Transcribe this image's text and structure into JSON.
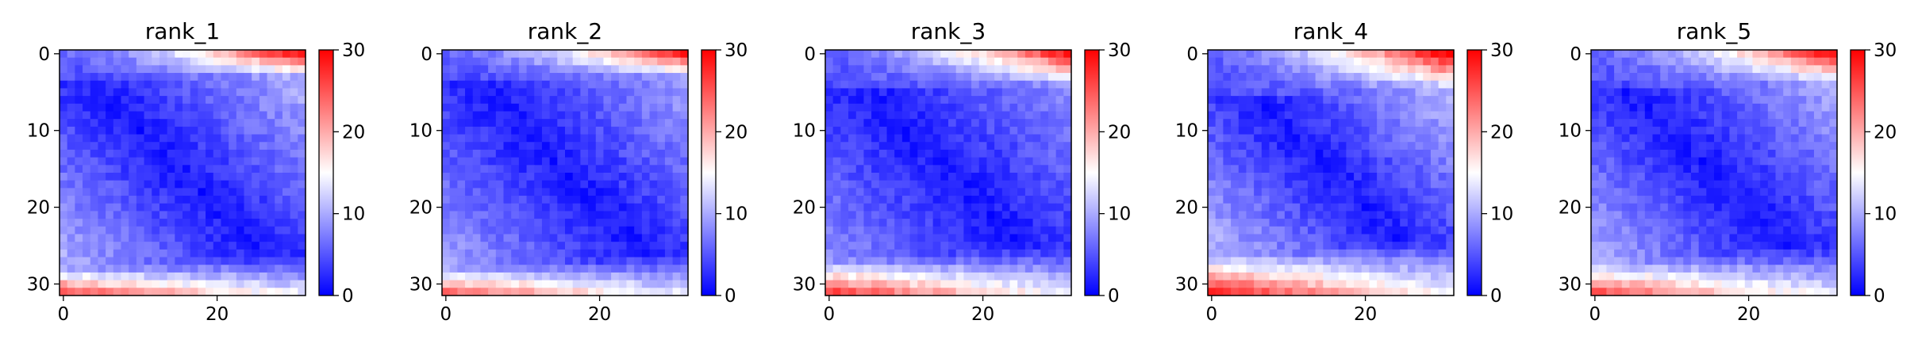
{
  "chart_data": [
    {
      "type": "heatmap",
      "title": "rank_1",
      "size": 32,
      "xticks": [
        0,
        20
      ],
      "yticks": [
        0,
        10,
        20,
        30
      ],
      "colorbar": {
        "min": 0,
        "max": 30,
        "ticks": [
          0,
          10,
          20,
          30
        ],
        "colormap": "bwr"
      },
      "profile": {
        "diag": 1.5,
        "ramp": 10,
        "top": 28,
        "bottom": 25,
        "flare_rows": 4
      }
    },
    {
      "type": "heatmap",
      "title": "rank_2",
      "size": 32,
      "xticks": [
        0,
        20
      ],
      "yticks": [
        0,
        10,
        20,
        30
      ],
      "colorbar": {
        "min": 0,
        "max": 30,
        "ticks": [
          0,
          10,
          20,
          30
        ],
        "colormap": "bwr"
      },
      "profile": {
        "diag": 1.5,
        "ramp": 9,
        "top": 26,
        "bottom": 24,
        "flare_rows": 4
      }
    },
    {
      "type": "heatmap",
      "title": "rank_3",
      "size": 32,
      "xticks": [
        0,
        20
      ],
      "yticks": [
        0,
        10,
        20,
        30
      ],
      "colorbar": {
        "min": 0,
        "max": 30,
        "ticks": [
          0,
          10,
          20,
          30
        ],
        "colormap": "bwr"
      },
      "profile": {
        "diag": 1.5,
        "ramp": 8,
        "top": 27,
        "bottom": 26,
        "flare_rows": 5
      }
    },
    {
      "type": "heatmap",
      "title": "rank_4",
      "size": 32,
      "xticks": [
        0,
        20
      ],
      "yticks": [
        0,
        10,
        20,
        30
      ],
      "colorbar": {
        "min": 0,
        "max": 30,
        "ticks": [
          0,
          10,
          20,
          30
        ],
        "colormap": "bwr"
      },
      "profile": {
        "diag": 1.5,
        "ramp": 11,
        "top": 29,
        "bottom": 28,
        "flare_rows": 6
      }
    },
    {
      "type": "heatmap",
      "title": "rank_5",
      "size": 32,
      "xticks": [
        0,
        20
      ],
      "yticks": [
        0,
        10,
        20,
        30
      ],
      "colorbar": {
        "min": 0,
        "max": 30,
        "ticks": [
          0,
          10,
          20,
          30
        ],
        "colormap": "bwr"
      },
      "profile": {
        "diag": 1.5,
        "ramp": 10,
        "top": 28,
        "bottom": 25,
        "flare_rows": 5
      }
    }
  ]
}
